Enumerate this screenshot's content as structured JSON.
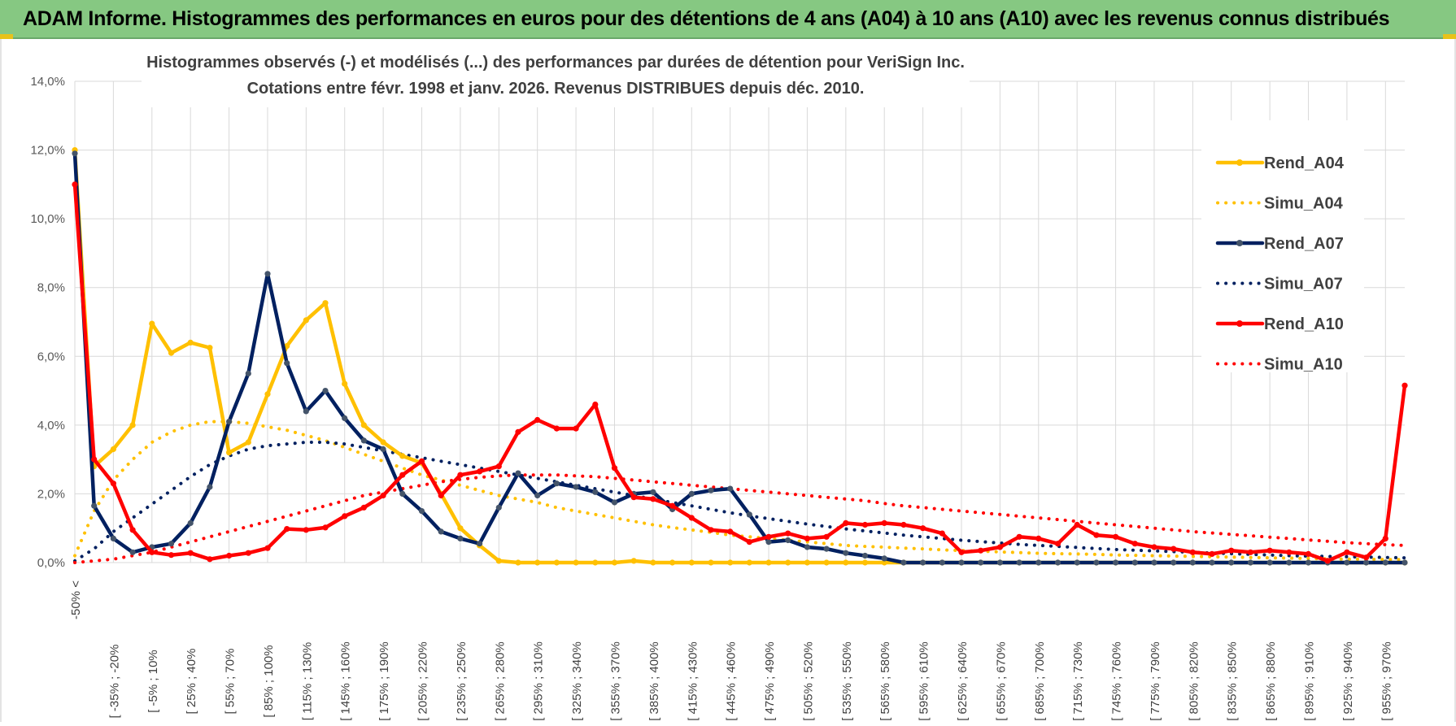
{
  "header": {
    "title": "ADAM Informe. Histogrammes des performances en euros pour des détentions de 4 ans (A04) à 10 ans (A10) avec les revenus connus distribués"
  },
  "chart_data": {
    "type": "line",
    "title_line1": "Histogrammes observés (-) et modélisés (...) des performances par durées de détention pour VeriSign Inc.",
    "title_line2": "Cotations entre févr. 1998 et janv. 2026. Revenus DISTRIBUES depuis déc. 2010.",
    "ylim": [
      0,
      14
    ],
    "yticks": [
      "0,0%",
      "2,0%",
      "4,0%",
      "6,0%",
      "8,0%",
      "10,0%",
      "12,0%",
      "14,0%"
    ],
    "grid": true,
    "legend_position": "right",
    "xtick_labels": [
      "-50% <",
      "[ -35% ; -20%",
      "[ -5% ; 10%",
      "[ 25% ; 40%",
      "[ 55% ; 70%",
      "[ 85% ; 100%",
      "[ 115% ; 130%",
      "[ 145% ; 160%",
      "[ 175% ; 190%",
      "[ 205% ; 220%",
      "[ 235% ; 250%",
      "[ 265% ; 280%",
      "[ 295% ; 310%",
      "[ 325% ; 340%",
      "[ 355% ; 370%",
      "[ 385% ; 400%",
      "[ 415% ; 430%",
      "[ 445% ; 460%",
      "[ 475% ; 490%",
      "[ 505% ; 520%",
      "[ 535% ; 550%",
      "[ 565% ; 580%",
      "[ 595% ; 610%",
      "[ 625% ; 640%",
      "[ 655% ; 670%",
      "[ 685% ; 700%",
      "[ 715% ; 730%",
      "[ 745% ; 760%",
      "[ 775% ; 790%",
      "[ 805% ; 820%",
      "[ 835% ; 850%",
      "[ 865% ; 880%",
      "[ 895% ; 910%",
      "[ 925% ; 940%",
      "[ 955% ; 970%"
    ],
    "category_count": 70,
    "series": [
      {
        "name": "Rend_A04",
        "color": "#ffc000",
        "style": "solid",
        "markers": true,
        "values": [
          12.0,
          2.8,
          3.3,
          4.0,
          6.95,
          6.1,
          6.4,
          6.25,
          3.2,
          3.5,
          4.9,
          6.3,
          7.05,
          7.55,
          5.2,
          4.0,
          3.5,
          3.1,
          2.9,
          2.0,
          1.0,
          0.5,
          0.05,
          0.0,
          0.0,
          0.0,
          0.0,
          0.0,
          0.0,
          0.05,
          0.0,
          0.0,
          0.0,
          0.0,
          0.0,
          0.0,
          0.0,
          0.0,
          0.0,
          0.0,
          0.0,
          0.0,
          0.0,
          0.0,
          0.0,
          0.0,
          0.0,
          0.0,
          0.0,
          0.0,
          0.0,
          0.0,
          0.0,
          0.0,
          0.0,
          0.0,
          0.0,
          0.0,
          0.0,
          0.0,
          0.0,
          0.0,
          0.0,
          0.0,
          0.0,
          0.0,
          0.0,
          0.0,
          0.0,
          0.0
        ]
      },
      {
        "name": "Simu_A04",
        "color": "#ffc000",
        "style": "dotted",
        "markers": false,
        "values": [
          0.2,
          1.5,
          2.4,
          3.0,
          3.5,
          3.8,
          4.0,
          4.1,
          4.1,
          4.05,
          3.95,
          3.85,
          3.7,
          3.55,
          3.35,
          3.15,
          2.95,
          2.75,
          2.55,
          2.4,
          2.25,
          2.1,
          1.95,
          1.85,
          1.75,
          1.6,
          1.5,
          1.4,
          1.3,
          1.2,
          1.1,
          1.02,
          0.95,
          0.88,
          0.8,
          0.75,
          0.7,
          0.65,
          0.6,
          0.55,
          0.5,
          0.47,
          0.45,
          0.42,
          0.4,
          0.37,
          0.35,
          0.33,
          0.31,
          0.29,
          0.27,
          0.26,
          0.25,
          0.24,
          0.22,
          0.21,
          0.2,
          0.19,
          0.18,
          0.17,
          0.16,
          0.15,
          0.14,
          0.13,
          0.12,
          0.11,
          0.1,
          0.1,
          0.09,
          0.09
        ]
      },
      {
        "name": "Rend_A07",
        "color": "#002060",
        "style": "solid",
        "markers": true,
        "values": [
          11.9,
          1.65,
          0.7,
          0.3,
          0.45,
          0.55,
          1.15,
          2.2,
          4.1,
          5.5,
          8.4,
          5.8,
          4.4,
          5.0,
          4.2,
          3.55,
          3.3,
          2.0,
          1.5,
          0.9,
          0.7,
          0.55,
          1.6,
          2.6,
          1.95,
          2.3,
          2.2,
          2.05,
          1.75,
          2.0,
          2.05,
          1.55,
          2.0,
          2.1,
          2.15,
          1.4,
          0.6,
          0.65,
          0.45,
          0.4,
          0.28,
          0.2,
          0.12,
          0.0,
          0.0,
          0.0,
          0.0,
          0.0,
          0.0,
          0.0,
          0.0,
          0.0,
          0.0,
          0.0,
          0.0,
          0.0,
          0.0,
          0.0,
          0.0,
          0.0,
          0.0,
          0.0,
          0.0,
          0.0,
          0.0,
          0.0,
          0.0,
          0.0,
          0.0,
          0.0
        ]
      },
      {
        "name": "Simu_A07",
        "color": "#002060",
        "style": "dotted",
        "markers": false,
        "values": [
          0.05,
          0.4,
          0.9,
          1.3,
          1.7,
          2.1,
          2.5,
          2.85,
          3.1,
          3.3,
          3.4,
          3.45,
          3.5,
          3.5,
          3.45,
          3.35,
          3.25,
          3.15,
          3.05,
          2.95,
          2.85,
          2.75,
          2.65,
          2.55,
          2.45,
          2.35,
          2.25,
          2.15,
          2.05,
          1.95,
          1.85,
          1.75,
          1.65,
          1.55,
          1.45,
          1.36,
          1.28,
          1.2,
          1.12,
          1.05,
          0.98,
          0.92,
          0.86,
          0.8,
          0.75,
          0.7,
          0.65,
          0.61,
          0.57,
          0.53,
          0.5,
          0.47,
          0.44,
          0.41,
          0.38,
          0.36,
          0.34,
          0.32,
          0.3,
          0.28,
          0.26,
          0.24,
          0.22,
          0.2,
          0.19,
          0.18,
          0.17,
          0.16,
          0.15,
          0.14
        ]
      },
      {
        "name": "Rend_A10",
        "color": "#ff0000",
        "style": "solid",
        "markers": true,
        "values": [
          11.0,
          3.0,
          2.3,
          0.95,
          0.3,
          0.22,
          0.28,
          0.1,
          0.2,
          0.28,
          0.42,
          0.98,
          0.95,
          1.02,
          1.35,
          1.6,
          1.95,
          2.55,
          2.95,
          1.95,
          2.55,
          2.65,
          2.8,
          3.8,
          4.15,
          3.9,
          3.9,
          4.6,
          2.75,
          1.9,
          1.85,
          1.65,
          1.3,
          0.95,
          0.9,
          0.6,
          0.75,
          0.85,
          0.7,
          0.75,
          1.15,
          1.1,
          1.15,
          1.1,
          1.0,
          0.85,
          0.3,
          0.35,
          0.45,
          0.75,
          0.7,
          0.55,
          1.1,
          0.8,
          0.75,
          0.55,
          0.45,
          0.4,
          0.3,
          0.25,
          0.35,
          0.3,
          0.35,
          0.3,
          0.25,
          0.05,
          0.3,
          0.15,
          0.7,
          5.15
        ]
      },
      {
        "name": "Simu_A10",
        "color": "#ff0000",
        "style": "dotted",
        "markers": false,
        "values": [
          0.0,
          0.05,
          0.1,
          0.2,
          0.3,
          0.45,
          0.6,
          0.75,
          0.9,
          1.05,
          1.2,
          1.35,
          1.5,
          1.65,
          1.8,
          1.95,
          2.05,
          2.15,
          2.25,
          2.35,
          2.42,
          2.48,
          2.52,
          2.55,
          2.55,
          2.55,
          2.52,
          2.5,
          2.45,
          2.4,
          2.35,
          2.3,
          2.25,
          2.2,
          2.15,
          2.1,
          2.05,
          2.0,
          1.95,
          1.9,
          1.85,
          1.8,
          1.72,
          1.65,
          1.6,
          1.55,
          1.5,
          1.45,
          1.4,
          1.35,
          1.3,
          1.25,
          1.2,
          1.15,
          1.1,
          1.05,
          1.0,
          0.95,
          0.9,
          0.86,
          0.82,
          0.78,
          0.74,
          0.7,
          0.66,
          0.62,
          0.58,
          0.55,
          0.52,
          0.5
        ]
      }
    ]
  }
}
